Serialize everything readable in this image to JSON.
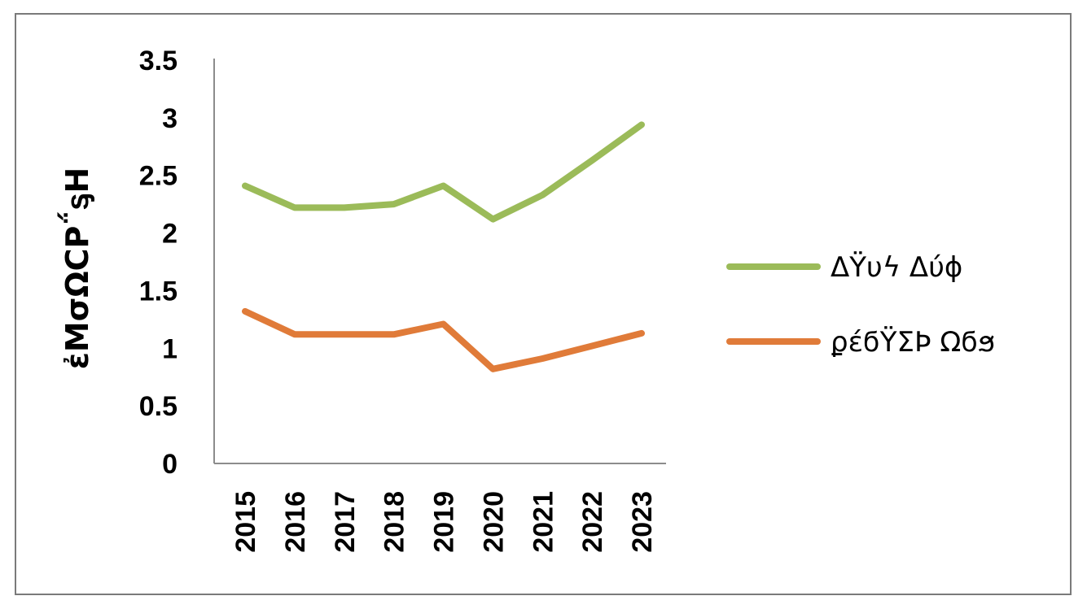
{
  "chart_data": {
    "type": "line",
    "title": "",
    "xlabel": "",
    "ylabel": "ἐΜσΩϹΡ΅ᶊΗ",
    "categories": [
      "2015",
      "2016",
      "2017",
      "2018",
      "2019",
      "2020",
      "2021",
      "2022",
      "2023"
    ],
    "ylim": [
      0,
      3.5
    ],
    "yticks": [
      "0",
      "0.5",
      "1",
      "1.5",
      "2",
      "2.5",
      "3",
      "3.5"
    ],
    "grid": false,
    "legend_position": "right",
    "series": [
      {
        "name": "ΔΫυϟ Δύϕ",
        "color": "#9BBB59",
        "values": [
          2.41,
          2.22,
          2.22,
          2.25,
          2.41,
          2.12,
          2.33,
          2.63,
          2.94
        ]
      },
      {
        "name": "ϼέϭΫΣϷ Ωϭϧ",
        "color": "#E07B39",
        "values": [
          1.32,
          1.12,
          1.12,
          1.12,
          1.21,
          0.82,
          0.91,
          1.02,
          1.13
        ]
      }
    ]
  }
}
